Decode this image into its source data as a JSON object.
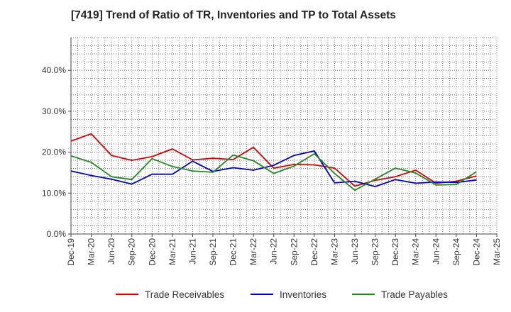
{
  "chart_data": {
    "type": "line",
    "title": "[7419]  Trend of Ratio of TR, Inventories and TP to Total Assets",
    "xlabel": "",
    "ylabel": "",
    "ylim": [
      0,
      48
    ],
    "y_ticks": [
      0,
      10,
      20,
      30,
      40
    ],
    "y_tick_labels": [
      "0.0%",
      "10.0%",
      "20.0%",
      "30.0%",
      "40.0%"
    ],
    "x_tick_labels": [
      "Dec-19",
      "Mar-20",
      "Jun-20",
      "Sep-20",
      "Dec-20",
      "Mar-21",
      "Jun-21",
      "Sep-21",
      "Dec-21",
      "Mar-22",
      "Jun-22",
      "Sep-22",
      "Dec-22",
      "Mar-23",
      "Jun-23",
      "Sep-23",
      "Dec-23",
      "Mar-24",
      "Jun-24",
      "Sep-24",
      "Dec-24",
      "Mar-25"
    ],
    "categories": [
      "Dec-19",
      "Mar-20",
      "Jun-20",
      "Sep-20",
      "Dec-20",
      "Mar-21",
      "Jun-21",
      "Sep-21",
      "Dec-21",
      "Mar-22",
      "Jun-22",
      "Sep-22",
      "Dec-22",
      "Mar-23",
      "Jun-23",
      "Sep-23",
      "Dec-23",
      "Mar-24",
      "Jun-24",
      "Sep-24",
      "Dec-24"
    ],
    "grid": true,
    "legend": "bottom",
    "series": [
      {
        "name": "Trade Receivables",
        "color": "#dd0000",
        "values": [
          22.7,
          24.5,
          19.2,
          18.0,
          18.9,
          20.8,
          18.1,
          18.5,
          18.2,
          21.2,
          16.1,
          17.0,
          16.9,
          16.1,
          11.7,
          13.1,
          14.0,
          15.6,
          12.4,
          12.9,
          14.2
        ]
      },
      {
        "name": "Inventories",
        "color": "#0000cc",
        "values": [
          15.4,
          14.3,
          13.4,
          12.2,
          14.6,
          14.6,
          17.8,
          15.3,
          16.2,
          15.6,
          16.8,
          19.2,
          20.3,
          12.5,
          12.9,
          11.6,
          13.3,
          12.4,
          12.7,
          12.6,
          13.2
        ]
      },
      {
        "name": "Trade Payables",
        "color": "#228822",
        "values": [
          19.1,
          17.5,
          14.0,
          13.3,
          18.4,
          16.5,
          15.4,
          15.1,
          19.3,
          17.9,
          14.8,
          16.6,
          19.6,
          14.8,
          10.7,
          13.4,
          16.1,
          14.9,
          12.0,
          12.1,
          15.2
        ]
      }
    ]
  }
}
